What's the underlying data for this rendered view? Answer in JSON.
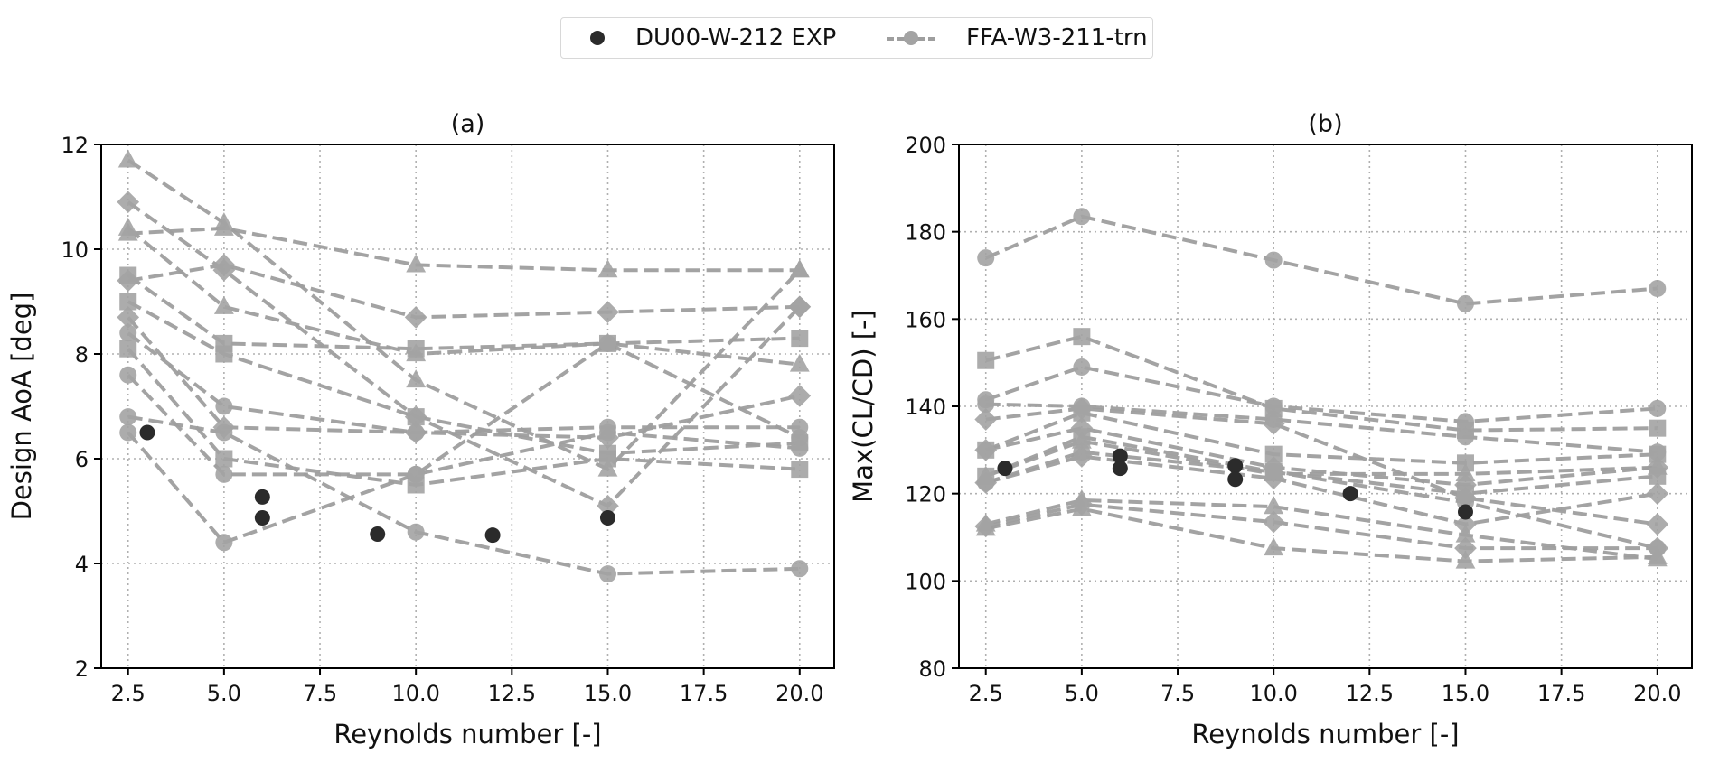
{
  "legend": {
    "items": [
      {
        "label": "DU00-W-212 EXP",
        "marker": "filled-circle",
        "color": "#2b2b2b"
      },
      {
        "label": "FFA-W3-211-trn",
        "marker": "dashed-line-with-markers",
        "color": "#9e9e9e"
      }
    ]
  },
  "chart_data": [
    {
      "type": "line",
      "title": "(a)",
      "xlabel": "Reynolds number [-]",
      "ylabel": "Design AoA [deg]",
      "xlim": [
        1.8,
        20.9
      ],
      "ylim": [
        2,
        12
      ],
      "xticks": [
        "2.5",
        "5.0",
        "7.5",
        "10.0",
        "12.5",
        "15.0",
        "17.5",
        "20.0"
      ],
      "xtick_values": [
        2.5,
        5.0,
        7.5,
        10.0,
        12.5,
        15.0,
        17.5,
        20.0
      ],
      "yticks": [
        "2",
        "4",
        "6",
        "8",
        "10",
        "12"
      ],
      "ytick_values": [
        2,
        4,
        6,
        8,
        10,
        12
      ],
      "grid": true,
      "x": [
        2.5,
        5.0,
        10.0,
        15.0,
        20.0
      ],
      "series": [
        {
          "name": "FFA-W3-211-trn",
          "marker": "triangle",
          "values": [
            11.7,
            10.5,
            7.5,
            5.8,
            9.6
          ]
        },
        {
          "name": "FFA-W3-211-trn",
          "marker": "diamond",
          "values": [
            10.9,
            9.6,
            6.8,
            5.1,
            8.9
          ]
        },
        {
          "name": "FFA-W3-211-trn",
          "marker": "triangle",
          "values": [
            10.3,
            10.4,
            9.7,
            9.6,
            9.6
          ]
        },
        {
          "name": "FFA-W3-211-trn",
          "marker": "triangle",
          "values": [
            10.4,
            8.9,
            8.0,
            8.2,
            7.8
          ]
        },
        {
          "name": "FFA-W3-211-trn",
          "marker": "square",
          "values": [
            9.5,
            8.2,
            8.1,
            8.2,
            8.3
          ]
        },
        {
          "name": "FFA-W3-211-trn",
          "marker": "diamond",
          "values": [
            9.4,
            9.7,
            8.7,
            8.8,
            8.9
          ]
        },
        {
          "name": "FFA-W3-211-trn",
          "marker": "square",
          "values": [
            9.0,
            8.0,
            6.8,
            6.1,
            6.3
          ]
        },
        {
          "name": "FFA-W3-211-trn",
          "marker": "diamond",
          "values": [
            8.7,
            6.6,
            6.5,
            6.4,
            7.2
          ]
        },
        {
          "name": "FFA-W3-211-trn",
          "marker": "circle",
          "values": [
            8.4,
            7.0,
            6.5,
            6.6,
            6.6
          ]
        },
        {
          "name": "FFA-W3-211-trn",
          "marker": "square",
          "values": [
            8.1,
            6.0,
            5.5,
            6.0,
            5.8
          ]
        },
        {
          "name": "FFA-W3-211-trn",
          "marker": "circle",
          "values": [
            7.6,
            5.7,
            5.7,
            6.5,
            6.2
          ]
        },
        {
          "name": "FFA-W3-211-trn",
          "marker": "circle",
          "values": [
            6.8,
            6.5,
            4.6,
            3.8,
            3.9
          ]
        },
        {
          "name": "FFA-W3-211-trn",
          "marker": "circle",
          "values": [
            6.5,
            4.4,
            5.7,
            8.2,
            6.4
          ]
        }
      ],
      "experimental": {
        "name": "DU00-W-212 EXP",
        "points": [
          [
            3.0,
            6.5
          ],
          [
            6.0,
            5.27
          ],
          [
            6.0,
            4.87
          ],
          [
            9.0,
            4.56
          ],
          [
            12.0,
            4.54
          ],
          [
            15.0,
            4.87
          ]
        ]
      }
    },
    {
      "type": "line",
      "title": "(b)",
      "xlabel": "Reynolds number [-]",
      "ylabel": "Max(CL/CD) [-]",
      "xlim": [
        1.8,
        20.9
      ],
      "ylim": [
        80,
        200
      ],
      "xticks": [
        "2.5",
        "5.0",
        "7.5",
        "10.0",
        "12.5",
        "15.0",
        "17.5",
        "20.0"
      ],
      "xtick_values": [
        2.5,
        5.0,
        7.5,
        10.0,
        12.5,
        15.0,
        17.5,
        20.0
      ],
      "yticks": [
        "80",
        "100",
        "120",
        "140",
        "160",
        "180",
        "200"
      ],
      "ytick_values": [
        80,
        100,
        120,
        140,
        160,
        180,
        200
      ],
      "grid": true,
      "x": [
        2.5,
        5.0,
        10.0,
        15.0,
        20.0
      ],
      "series": [
        {
          "name": "FFA-W3-211-trn",
          "marker": "circle",
          "values": [
            174.0,
            183.5,
            173.5,
            163.5,
            167.0
          ]
        },
        {
          "name": "FFA-W3-211-trn",
          "marker": "square",
          "values": [
            150.5,
            156.0,
            139.5,
            134.5,
            135.0
          ]
        },
        {
          "name": "FFA-W3-211-trn",
          "marker": "circle",
          "values": [
            141.5,
            149.0,
            140.0,
            136.5,
            139.5
          ]
        },
        {
          "name": "FFA-W3-211-trn",
          "marker": "circle",
          "values": [
            140.5,
            140.0,
            137.0,
            133.0,
            129.5
          ]
        },
        {
          "name": "FFA-W3-211-trn",
          "marker": "diamond",
          "values": [
            137.0,
            139.5,
            136.0,
            119.0,
            113.0
          ]
        },
        {
          "name": "FFA-W3-211-trn",
          "marker": "square",
          "values": [
            130.0,
            138.5,
            129.0,
            127.0,
            129.0
          ]
        },
        {
          "name": "FFA-W3-211-trn",
          "marker": "diamond",
          "values": [
            130.0,
            135.0,
            126.0,
            122.0,
            126.0
          ]
        },
        {
          "name": "FFA-W3-211-trn",
          "marker": "triangle",
          "values": [
            124.0,
            132.0,
            124.5,
            124.5,
            126.0
          ]
        },
        {
          "name": "FFA-W3-211-trn",
          "marker": "square",
          "values": [
            124.0,
            133.0,
            125.0,
            120.0,
            124.0
          ]
        },
        {
          "name": "FFA-W3-211-trn",
          "marker": "diamond",
          "values": [
            122.5,
            128.5,
            123.5,
            113.0,
            120.0
          ]
        },
        {
          "name": "FFA-W3-211-trn",
          "marker": "circle",
          "values": [
            122.5,
            129.5,
            125.0,
            118.0,
            107.5
          ]
        },
        {
          "name": "FFA-W3-211-trn",
          "marker": "triangle",
          "values": [
            113.0,
            118.5,
            117.0,
            110.5,
            105.0
          ]
        },
        {
          "name": "FFA-W3-211-trn",
          "marker": "diamond",
          "values": [
            112.5,
            117.5,
            113.5,
            107.5,
            107.5
          ]
        },
        {
          "name": "FFA-W3-211-trn",
          "marker": "triangle",
          "values": [
            112.0,
            116.5,
            107.5,
            104.5,
            105.5
          ]
        }
      ],
      "experimental": {
        "name": "DU00-W-212 EXP",
        "points": [
          [
            3.0,
            125.8
          ],
          [
            6.0,
            128.6
          ],
          [
            6.0,
            125.8
          ],
          [
            9.0,
            126.4
          ],
          [
            9.0,
            123.3
          ],
          [
            12.0,
            120.0
          ],
          [
            15.0,
            115.8
          ]
        ]
      }
    }
  ]
}
